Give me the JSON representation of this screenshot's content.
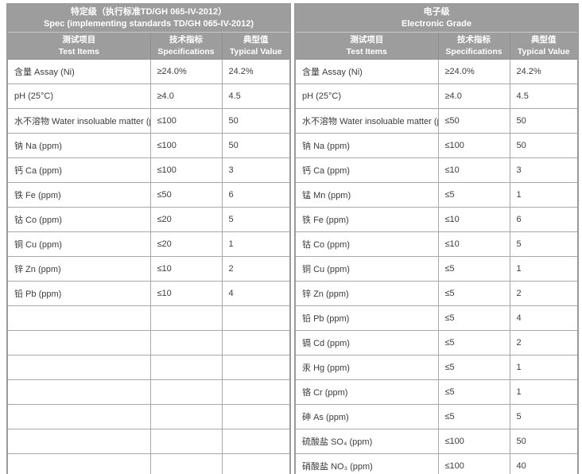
{
  "colors": {
    "header_bg": "#9d9d9d",
    "header_text": "#ffffff",
    "cell_border": "#a8a8a8",
    "outer_border": "#9a9a9a",
    "body_text": "#3c3c3c"
  },
  "tables": {
    "left": {
      "title_zh": "特定级（执行标准TD/GH 065-IV-2012）",
      "title_en": "Spec (implementing standards TD/GH 065-IV-2012)",
      "columns": [
        {
          "zh": "测试项目",
          "en": "Test Items"
        },
        {
          "zh": "技术指标",
          "en": "Specifications"
        },
        {
          "zh": "典型值",
          "en": "Typical Value"
        }
      ],
      "rows": [
        [
          "含量 Assay (Ni)",
          "≥24.0%",
          "24.2%"
        ],
        [
          "pH (25°C)",
          "≥4.0",
          "4.5"
        ],
        [
          "水不溶物 Water insoluable matter (ppm)",
          "≤100",
          "50"
        ],
        [
          "钠 Na (ppm)",
          "≤100",
          "50"
        ],
        [
          "钙 Ca (ppm)",
          "≤100",
          "3"
        ],
        [
          "铁 Fe (ppm)",
          "≤50",
          "6"
        ],
        [
          "钴 Co (ppm)",
          "≤20",
          "5"
        ],
        [
          "铜 Cu (ppm)",
          "≤20",
          "1"
        ],
        [
          "锌 Zn (ppm)",
          "≤10",
          "2"
        ],
        [
          "铅 Pb (ppm)",
          "≤10",
          "4"
        ],
        [
          "",
          "",
          ""
        ],
        [
          "",
          "",
          ""
        ],
        [
          "",
          "",
          ""
        ],
        [
          "",
          "",
          ""
        ],
        [
          "",
          "",
          ""
        ],
        [
          "",
          "",
          ""
        ],
        [
          "",
          "",
          ""
        ]
      ]
    },
    "right": {
      "title_zh": "电子级",
      "title_en": "Electronic Grade",
      "columns": [
        {
          "zh": "测试项目",
          "en": "Test Items"
        },
        {
          "zh": "技术指标",
          "en": "Specifications"
        },
        {
          "zh": "典型值",
          "en": "Typical Value"
        }
      ],
      "rows": [
        [
          "含量 Assay (Ni)",
          "≥24.0%",
          "24.2%"
        ],
        [
          "pH (25°C)",
          "≥4.0",
          "4.5"
        ],
        [
          "水不溶物 Water insoluable matter (ppm)",
          "≤50",
          "50"
        ],
        [
          "钠 Na (ppm)",
          "≤100",
          "50"
        ],
        [
          "钙 Ca (ppm)",
          "≤10",
          "3"
        ],
        [
          "锰 Mn (ppm)",
          "≤5",
          "1"
        ],
        [
          "铁 Fe (ppm)",
          "≤10",
          "6"
        ],
        [
          "钴 Co (ppm)",
          "≤10",
          "5"
        ],
        [
          "铜 Cu (ppm)",
          "≤5",
          "1"
        ],
        [
          "锌 Zn (ppm)",
          "≤5",
          "2"
        ],
        [
          "铅 Pb (ppm)",
          "≤5",
          "4"
        ],
        [
          "镉 Cd (ppm)",
          "≤5",
          "2"
        ],
        [
          "汞 Hg (ppm)",
          "≤5",
          "1"
        ],
        [
          "铬 Cr (ppm)",
          "≤5",
          "1"
        ],
        [
          "砷 As (ppm)",
          "≤5",
          "5"
        ],
        [
          "硫酸盐 SO₄ (ppm)",
          "≤100",
          "50"
        ],
        [
          "硝酸盐 NO₃ (ppm)",
          "≤100",
          "40"
        ]
      ]
    }
  }
}
